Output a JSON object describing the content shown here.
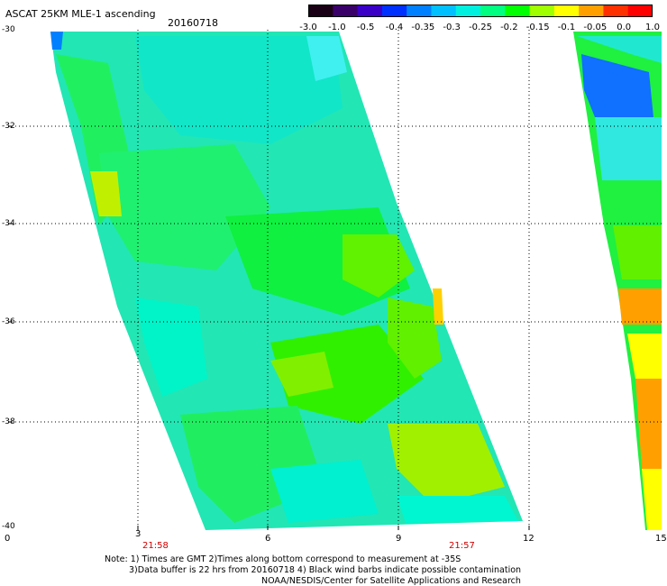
{
  "header": {
    "title": "ASCAT 25KM MLE-1 ascending",
    "date": "20160718"
  },
  "colorbar": {
    "labels": [
      "-3.0",
      "-1.0",
      "-0.5",
      "-0.4",
      "-0.35",
      "-0.3",
      "-0.25",
      "-0.2",
      "-0.15",
      "-0.1",
      "-0.05",
      "0.0",
      "1.0"
    ],
    "colors": [
      "#1a0014",
      "#3a006a",
      "#3a00c8",
      "#0030ff",
      "#0080ff",
      "#00c0ff",
      "#00f0e0",
      "#00ff80",
      "#00ff00",
      "#a0ff00",
      "#ffff00",
      "#ffa000",
      "#ff3000",
      "#ff0000"
    ]
  },
  "map": {
    "lat_labels": [
      "-30",
      "-32",
      "-34",
      "-36",
      "-38",
      "-40"
    ],
    "lon_labels": [
      "0",
      "3",
      "6",
      "9",
      "12",
      "15"
    ],
    "time_labels": [
      "21:58",
      "21:57"
    ]
  },
  "notes": {
    "line1": "Note: 1) Times are GMT 2)Times along bottom correspond to measurement at -35S",
    "line2": "3)Data buffer is 22 hrs from 20160718 4) Black wind barbs indicate possible contamination",
    "line3": "NOAA/NESDIS/Center for Satellite Applications and Research"
  }
}
